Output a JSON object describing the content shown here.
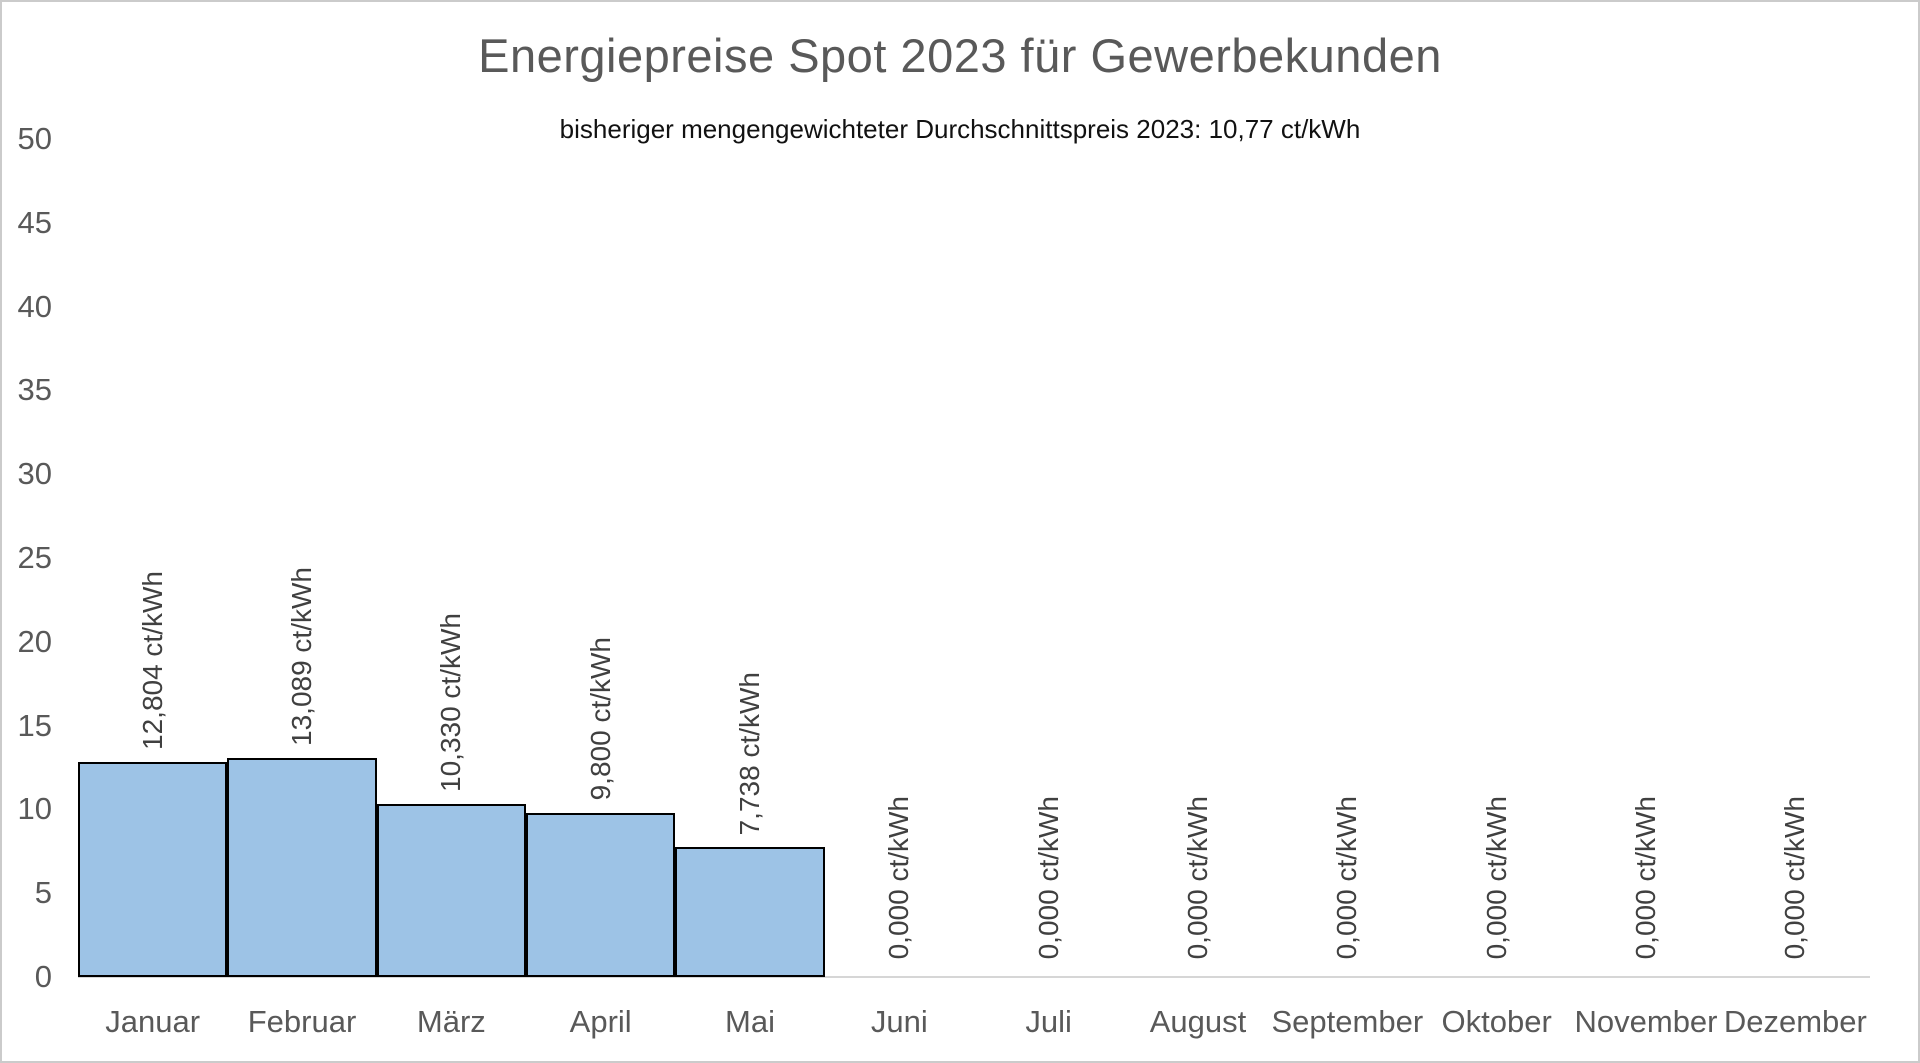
{
  "header": {
    "title": "Energiepreise Spot 2023 für Gewerbekunden",
    "subtitle": "bisheriger mengengewichteter Durchschnittspreis 2023: 10,77 ct/kWh"
  },
  "chart_data": {
    "type": "bar",
    "title": "Energiepreise Spot 2023 für Gewerbekunden",
    "subtitle": "bisheriger mengengewichteter Durchschnittspreis 2023: 10,77 ct/kWh",
    "categories": [
      "Januar",
      "Februar",
      "März",
      "April",
      "Mai",
      "Juni",
      "Juli",
      "August",
      "September",
      "Oktober",
      "November",
      "Dezember"
    ],
    "values": [
      12.804,
      13.089,
      10.33,
      9.8,
      7.738,
      0,
      0,
      0,
      0,
      0,
      0,
      0
    ],
    "data_labels": [
      "12,804 ct/kWh",
      "13,089 ct/kWh",
      "10,330 ct/kWh",
      "9,800 ct/kWh",
      "7,738 ct/kWh",
      "0,000 ct/kWh",
      "0,000 ct/kWh",
      "0,000 ct/kWh",
      "0,000 ct/kWh",
      "0,000 ct/kWh",
      "0,000 ct/kWh",
      "0,000 ct/kWh"
    ],
    "unit": "ct/kWh",
    "xlabel": "",
    "ylabel": "",
    "ylim": [
      0,
      50
    ],
    "ytick_step": 5,
    "yticks": [
      0,
      5,
      10,
      15,
      20,
      25,
      30,
      35,
      40,
      45,
      50
    ],
    "grid": false,
    "legend": "none",
    "bar_gap_percent": 0,
    "colors": {
      "bar_fill": "#9dc3e6",
      "bar_border": "#000000",
      "axis_line": "#d6d6d6",
      "tick_label": "#595959",
      "data_label": "#404040",
      "title": "#595959",
      "subtitle": "#111111"
    }
  }
}
